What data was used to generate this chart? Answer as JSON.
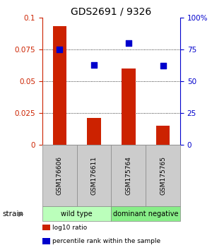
{
  "title": "GDS2691 / 9326",
  "samples": [
    "GSM176606",
    "GSM176611",
    "GSM175764",
    "GSM175765"
  ],
  "log10_ratio": [
    0.093,
    0.021,
    0.06,
    0.015
  ],
  "percentile_rank": [
    75,
    63,
    80,
    62
  ],
  "bar_color": "#cc2200",
  "dot_color": "#0000cc",
  "left_ylim": [
    0,
    0.1
  ],
  "right_ylim": [
    0,
    100
  ],
  "left_yticks": [
    0,
    0.025,
    0.05,
    0.075,
    0.1
  ],
  "right_yticks": [
    0,
    25,
    50,
    75,
    100
  ],
  "right_yticklabels": [
    "0",
    "25",
    "50",
    "75",
    "100%"
  ],
  "gridlines": [
    0.025,
    0.05,
    0.075
  ],
  "strain_groups": [
    {
      "label": "wild type",
      "indices": [
        0,
        1
      ],
      "color": "#bbffbb"
    },
    {
      "label": "dominant negative",
      "indices": [
        2,
        3
      ],
      "color": "#88ee88"
    }
  ],
  "legend_items": [
    {
      "label": "log10 ratio",
      "color": "#cc2200"
    },
    {
      "label": "percentile rank within the sample",
      "color": "#0000cc"
    }
  ],
  "sample_box_color": "#cccccc",
  "left_axis_color": "#cc2200",
  "right_axis_color": "#0000cc",
  "bar_width": 0.4,
  "dot_size": 30
}
